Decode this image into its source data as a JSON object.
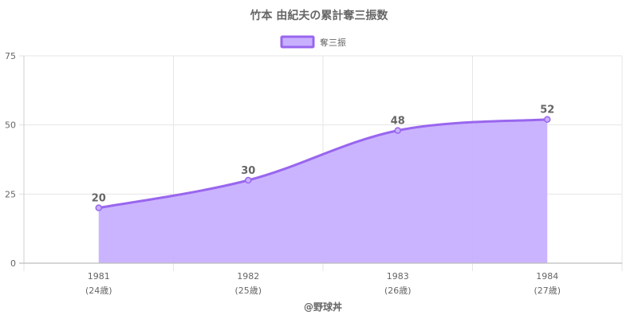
{
  "chart_data": {
    "type": "area",
    "title": "竹本 由紀夫の累計奪三振数",
    "categories": [
      "1981",
      "1982",
      "1983",
      "1984"
    ],
    "category_sublabels": [
      "(24歳)",
      "(25歳)",
      "(26歳)",
      "(27歳)"
    ],
    "series": [
      {
        "name": "奪三振",
        "values": [
          20,
          30,
          48,
          52
        ]
      }
    ],
    "data_labels": [
      "20",
      "30",
      "48",
      "52"
    ],
    "ylim": [
      0,
      75
    ],
    "yticks": [
      0,
      25,
      50,
      75
    ],
    "ytick_labels": [
      "0",
      "25",
      "50",
      "75"
    ],
    "grid": true,
    "legend_position": "top",
    "line_color": "#9966ee",
    "fill_color": "#c8b0ff",
    "credit": "@野球丼"
  }
}
